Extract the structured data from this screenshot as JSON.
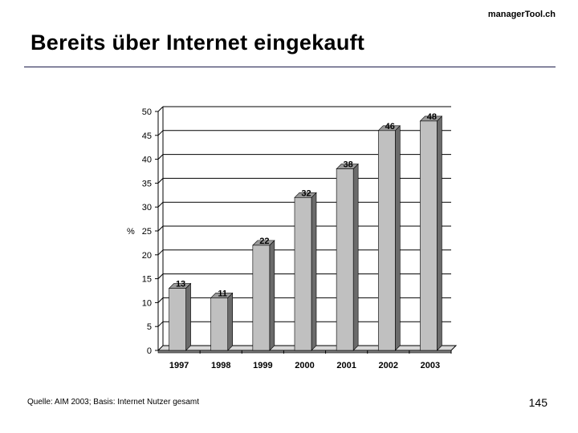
{
  "header": {
    "brand": "managerTool.ch",
    "title": "Bereits über Internet eingekauft"
  },
  "footer": {
    "source": "Quelle: AIM 2003; Basis: Internet Nutzer gesamt",
    "page_number": "145"
  },
  "colors": {
    "bar_front": "#c0c0c0",
    "bar_side": "#6b6b6b",
    "bar_top": "#9a9a9a",
    "floor": "#7a7a7a",
    "rule": "#1a1a4a"
  },
  "chart_data": {
    "type": "bar",
    "categories": [
      "1997",
      "1998",
      "1999",
      "2000",
      "2001",
      "2002",
      "2003"
    ],
    "values": [
      13,
      11,
      22,
      32,
      38,
      46,
      48
    ],
    "title": "",
    "xlabel": "",
    "ylabel": "%",
    "ylim": [
      0,
      50
    ],
    "yticks": [
      "0",
      "5",
      "10",
      "15",
      "20",
      "25",
      "30",
      "35",
      "40",
      "45",
      "50"
    ],
    "data_labels": [
      "13",
      "11",
      "22",
      "32",
      "38",
      "46",
      "48"
    ],
    "grid": true,
    "legend": "none"
  }
}
